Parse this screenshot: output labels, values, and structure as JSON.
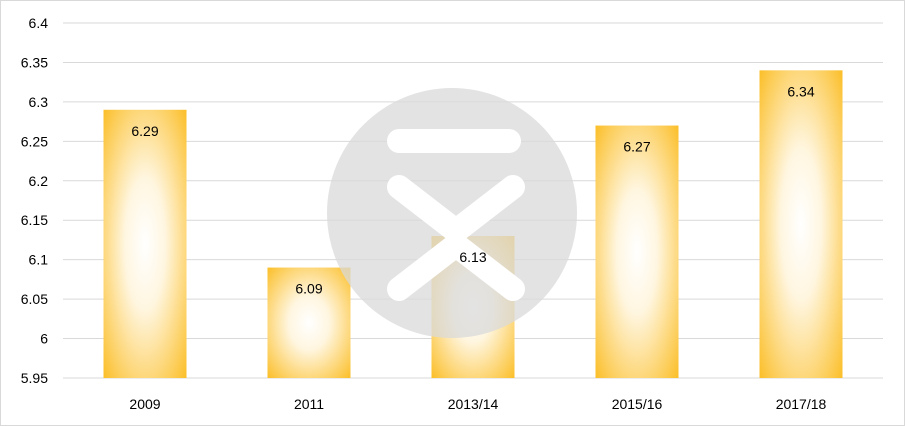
{
  "chart_data": {
    "type": "bar",
    "title": "",
    "xlabel": "",
    "ylabel": "",
    "categories": [
      "2009",
      "2011",
      "2013/14",
      "2015/16",
      "2017/18"
    ],
    "values": [
      6.29,
      6.09,
      6.13,
      6.27,
      6.34
    ],
    "data_labels": [
      "6.29",
      "6.09",
      "6.13",
      "6.27",
      "6.34"
    ],
    "ylim": [
      5.95,
      6.4
    ],
    "yticks": [
      5.95,
      6,
      6.05,
      6.1,
      6.15,
      6.2,
      6.25,
      6.3,
      6.35,
      6.4
    ],
    "ytick_labels": [
      "5.95",
      "6",
      "6.05",
      "6.1",
      "6.15",
      "6.2",
      "6.25",
      "6.3",
      "6.35",
      "6.4"
    ],
    "grid": true,
    "legend": "none",
    "colors": {
      "bar_edge": "#fbbf2a",
      "bar_center": "#ffffff",
      "grid": "#d9d9d9",
      "watermark": "#d9d9d9"
    },
    "watermark_icon": "circle-chevron-watermark-icon"
  }
}
